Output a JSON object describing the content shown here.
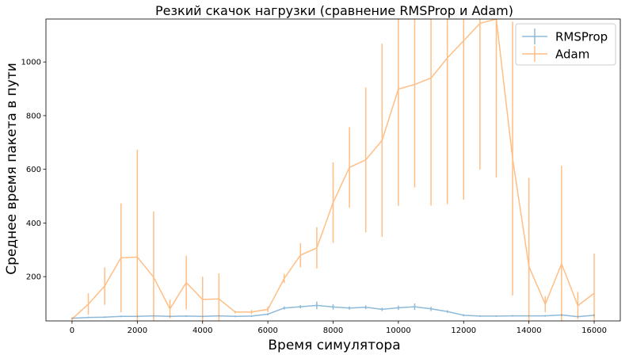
{
  "chart_data": {
    "type": "line",
    "title": "Резкий скачок нагрузки (сравнение RMSProp и Adam)",
    "xlabel": "Время симулятора",
    "ylabel": "Среднее время пакета в пути",
    "xlim": [
      -800,
      16800
    ],
    "ylim": [
      35,
      1160
    ],
    "xticks": [
      0,
      2000,
      4000,
      6000,
      8000,
      10000,
      12000,
      14000,
      16000
    ],
    "yticks": [
      200,
      400,
      600,
      800,
      1000
    ],
    "legend_position": "top-right",
    "grid": false,
    "x": [
      0,
      500,
      1000,
      1500,
      2000,
      2500,
      3000,
      3500,
      4000,
      4500,
      5000,
      5500,
      6000,
      6500,
      7000,
      7500,
      8000,
      8500,
      9000,
      9500,
      10000,
      10500,
      11000,
      11500,
      12000,
      12500,
      13000,
      13500,
      14000,
      14500,
      15000,
      15500,
      16000
    ],
    "series": [
      {
        "name": "RMSProp",
        "color": "#1f77b4",
        "values": [
          45,
          48,
          49,
          52,
          52,
          54,
          52,
          53,
          52,
          54,
          52,
          53,
          60,
          83,
          88,
          93,
          87,
          83,
          86,
          78,
          84,
          88,
          80,
          70,
          56,
          53,
          53,
          54,
          54,
          54,
          57,
          51,
          56
        ],
        "errors": [
          3,
          3,
          3,
          3,
          3,
          3,
          3,
          3,
          3,
          3,
          3,
          3,
          4,
          6,
          6,
          14,
          10,
          6,
          7,
          6,
          8,
          12,
          8,
          5,
          4,
          3,
          3,
          3,
          3,
          3,
          4,
          3,
          4
        ]
      },
      {
        "name": "Adam",
        "color": "#ff7f0e",
        "values": [
          42,
          98,
          165,
          270,
          273,
          198,
          80,
          178,
          115,
          117,
          68,
          68,
          78,
          193,
          280,
          307,
          476,
          607,
          635,
          708,
          899,
          916,
          940,
          1015,
          1079,
          1144,
          1160,
          640,
          238,
          97,
          248,
          92,
          138
        ],
        "errors": [
          5,
          40,
          70,
          203,
          400,
          245,
          35,
          100,
          85,
          95,
          5,
          8,
          10,
          17,
          45,
          77,
          150,
          150,
          270,
          360,
          435,
          384,
          475,
          545,
          592,
          545,
          590,
          510,
          330,
          30,
          365,
          50,
          148
        ]
      }
    ]
  }
}
